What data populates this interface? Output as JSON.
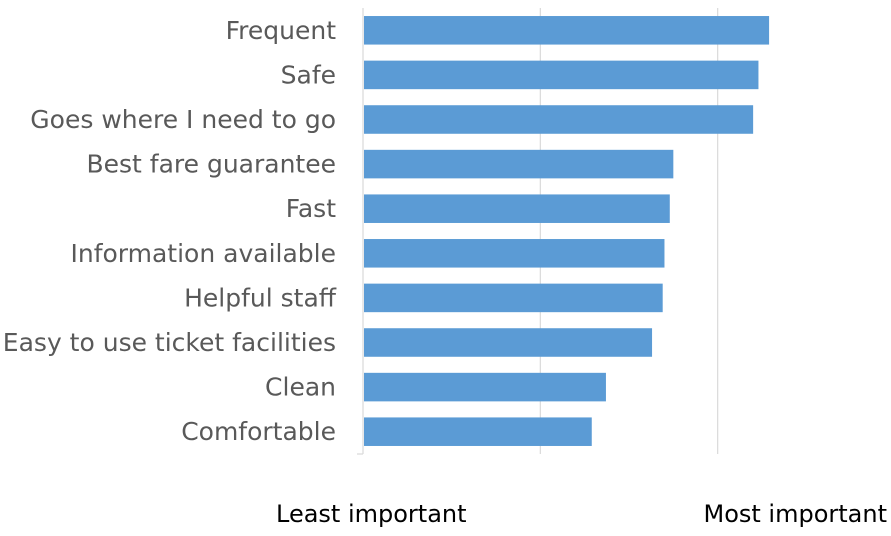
{
  "chart_data": {
    "type": "bar",
    "orientation": "horizontal",
    "categories": [
      "Frequent",
      "Safe",
      "Goes where I need to go",
      "Best fare guarantee",
      "Fast",
      "Information available",
      "Helpful staff",
      "Easy to use ticket facilities",
      "Clean",
      "Comfortable"
    ],
    "values": [
      2.29,
      2.23,
      2.2,
      1.75,
      1.73,
      1.7,
      1.69,
      1.63,
      1.37,
      1.29
    ],
    "xlim": [
      0,
      3
    ],
    "x_gridlines": [
      1,
      2
    ],
    "x_tick_labels_shown": false,
    "bar_color": "#5b9bd5",
    "x_end_labels": {
      "left": "Least important",
      "right": "Most important"
    },
    "grid": true,
    "legend": "none"
  }
}
